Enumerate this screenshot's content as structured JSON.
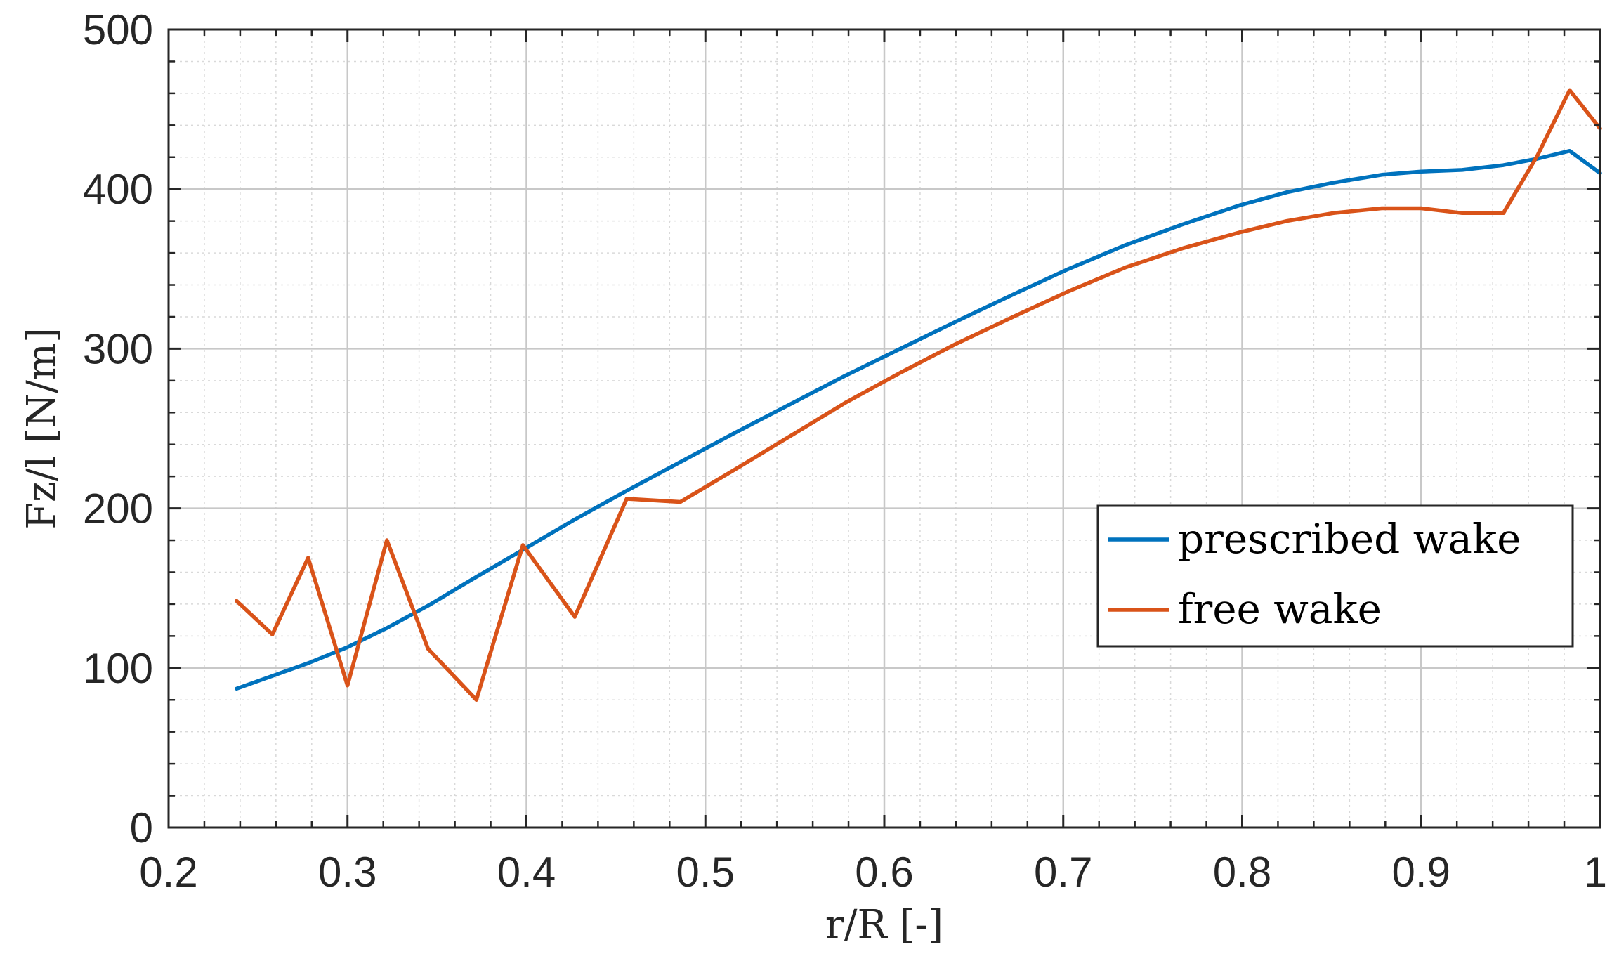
{
  "chart_data": {
    "type": "line",
    "title": "",
    "xlabel": "r/R [-]",
    "ylabel": "Fz/l [N/m]",
    "xlim": [
      0.2,
      1.0
    ],
    "ylim": [
      0,
      500
    ],
    "xticks": [
      "0.2",
      "0.3",
      "0.4",
      "0.5",
      "0.6",
      "0.7",
      "0.8",
      "0.9",
      "1"
    ],
    "yticks": [
      "0",
      "100",
      "200",
      "300",
      "400",
      "500"
    ],
    "grid": true,
    "minor_grid": true,
    "legend_position": "center-right",
    "series": [
      {
        "name": "prescribed wake",
        "color": "#0072BD",
        "x": [
          0.238,
          0.258,
          0.278,
          0.3,
          0.322,
          0.345,
          0.372,
          0.398,
          0.427,
          0.456,
          0.486,
          0.516,
          0.547,
          0.578,
          0.609,
          0.64,
          0.672,
          0.703,
          0.735,
          0.767,
          0.799,
          0.825,
          0.851,
          0.878,
          0.9,
          0.923,
          0.946,
          0.965,
          0.983,
          1.0
        ],
        "y": [
          87,
          95,
          103,
          113,
          125,
          139,
          157,
          174,
          193,
          211,
          229,
          247,
          265,
          283,
          300,
          317,
          334,
          350,
          365,
          378,
          390,
          398,
          404,
          409,
          411,
          412,
          415,
          419,
          424,
          410
        ]
      },
      {
        "name": "free wake",
        "color": "#D95319",
        "x": [
          0.238,
          0.258,
          0.278,
          0.3,
          0.322,
          0.345,
          0.372,
          0.398,
          0.427,
          0.456,
          0.486,
          0.516,
          0.547,
          0.578,
          0.609,
          0.64,
          0.672,
          0.703,
          0.735,
          0.767,
          0.799,
          0.825,
          0.851,
          0.878,
          0.9,
          0.923,
          0.946,
          0.965,
          0.983,
          1.0
        ],
        "y": [
          142,
          121,
          169,
          89,
          180,
          112,
          80,
          177,
          132,
          206,
          204,
          224,
          245,
          266,
          285,
          303,
          320,
          336,
          351,
          363,
          373,
          380,
          385,
          388,
          388,
          385,
          385,
          421,
          462,
          438
        ]
      }
    ]
  }
}
